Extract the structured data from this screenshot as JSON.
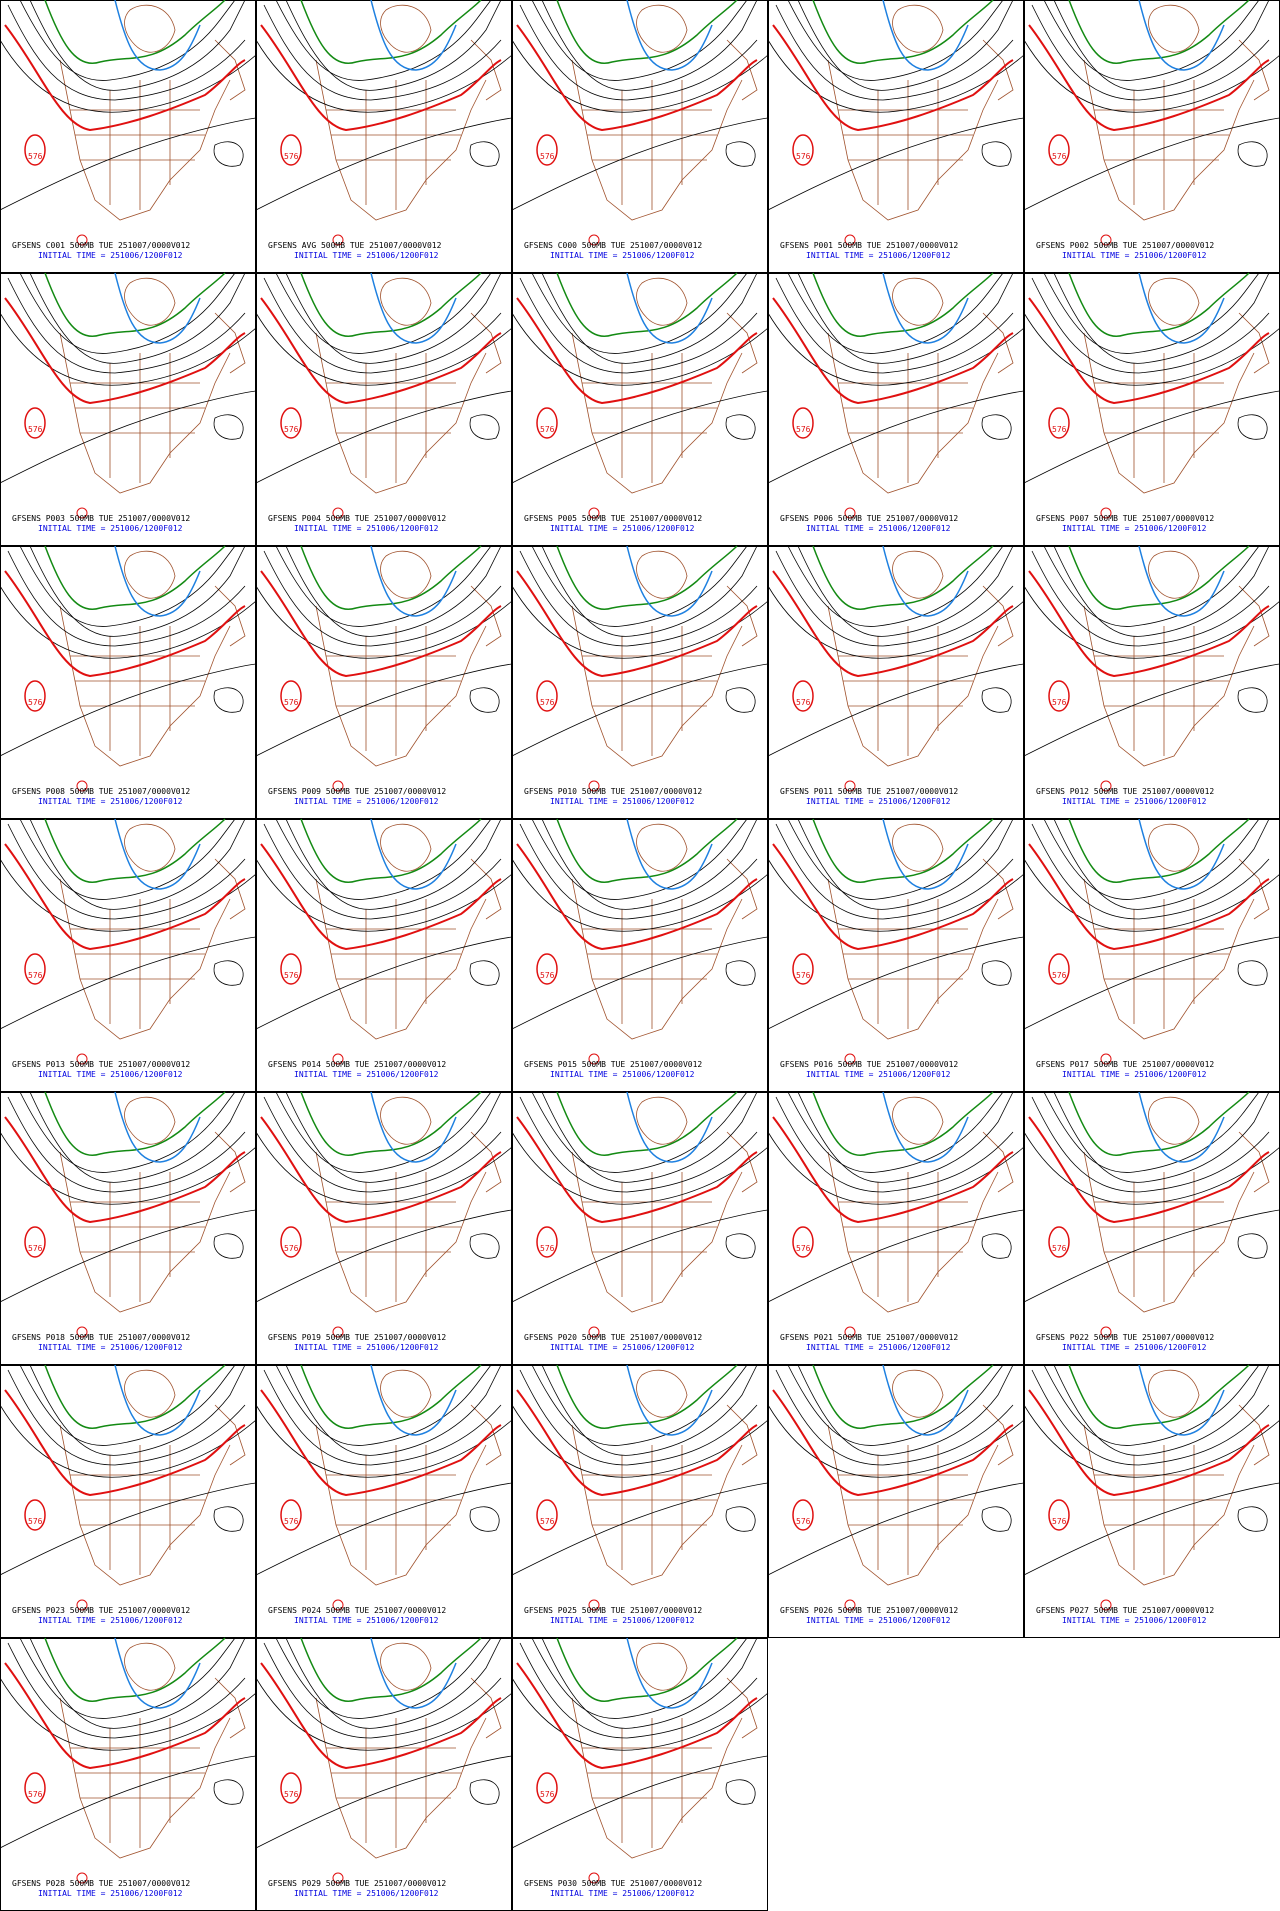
{
  "contour_label": "576",
  "panels": [
    {
      "title": "GFSENS C001 500MB TUE 251007/0000V012",
      "initial_time": "INITIAL TIME = 251006/1200F012"
    },
    {
      "title": "GFSENS AVG 500MB TUE 251007/0000V012",
      "initial_time": "INITIAL TIME = 251006/1200F012"
    },
    {
      "title": "GFSENS C000 500MB TUE 251007/0000V012",
      "initial_time": "INITIAL TIME = 251006/1200F012"
    },
    {
      "title": "GFSENS P001 500MB TUE 251007/0000V012",
      "initial_time": "INITIAL TIME = 251006/1200F012"
    },
    {
      "title": "GFSENS P002 500MB TUE 251007/0000V012",
      "initial_time": "INITIAL TIME = 251006/1200F012"
    },
    {
      "title": "GFSENS P003 500MB TUE 251007/0000V012",
      "initial_time": "INITIAL TIME = 251006/1200F012"
    },
    {
      "title": "GFSENS P004 500MB TUE 251007/0000V012",
      "initial_time": "INITIAL TIME = 251006/1200F012"
    },
    {
      "title": "GFSENS P005 500MB TUE 251007/0000V012",
      "initial_time": "INITIAL TIME = 251006/1200F012"
    },
    {
      "title": "GFSENS P006 500MB TUE 251007/0000V012",
      "initial_time": "INITIAL TIME = 251006/1200F012"
    },
    {
      "title": "GFSENS P007 500MB TUE 251007/0000V012",
      "initial_time": "INITIAL TIME = 251006/1200F012"
    },
    {
      "title": "GFSENS P008 500MB TUE 251007/0000V012",
      "initial_time": "INITIAL TIME = 251006/1200F012"
    },
    {
      "title": "GFSENS P009 500MB TUE 251007/0000V012",
      "initial_time": "INITIAL TIME = 251006/1200F012"
    },
    {
      "title": "GFSENS P010 500MB TUE 251007/0000V012",
      "initial_time": "INITIAL TIME = 251006/1200F012"
    },
    {
      "title": "GFSENS P011 500MB TUE 251007/0000V012",
      "initial_time": "INITIAL TIME = 251006/1200F012"
    },
    {
      "title": "GFSENS P012 500MB TUE 251007/0000V012",
      "initial_time": "INITIAL TIME = 251006/1200F012"
    },
    {
      "title": "GFSENS P013 500MB TUE 251007/0000V012",
      "initial_time": "INITIAL TIME = 251006/1200F012"
    },
    {
      "title": "GFSENS P014 500MB TUE 251007/0000V012",
      "initial_time": "INITIAL TIME = 251006/1200F012"
    },
    {
      "title": "GFSENS P015 500MB TUE 251007/0000V012",
      "initial_time": "INITIAL TIME = 251006/1200F012"
    },
    {
      "title": "GFSENS P016 500MB TUE 251007/0000V012",
      "initial_time": "INITIAL TIME = 251006/1200F012"
    },
    {
      "title": "GFSENS P017 500MB TUE 251007/0000V012",
      "initial_time": "INITIAL TIME = 251006/1200F012"
    },
    {
      "title": "GFSENS P018 500MB TUE 251007/0000V012",
      "initial_time": "INITIAL TIME = 251006/1200F012"
    },
    {
      "title": "GFSENS P019 500MB TUE 251007/0000V012",
      "initial_time": "INITIAL TIME = 251006/1200F012"
    },
    {
      "title": "GFSENS P020 500MB TUE 251007/0000V012",
      "initial_time": "INITIAL TIME = 251006/1200F012"
    },
    {
      "title": "GFSENS P021 500MB TUE 251007/0000V012",
      "initial_time": "INITIAL TIME = 251006/1200F012"
    },
    {
      "title": "GFSENS P022 500MB TUE 251007/0000V012",
      "initial_time": "INITIAL TIME = 251006/1200F012"
    },
    {
      "title": "GFSENS P023 500MB TUE 251007/0000V012",
      "initial_time": "INITIAL TIME = 251006/1200F012"
    },
    {
      "title": "GFSENS P024 500MB TUE 251007/0000V012",
      "initial_time": "INITIAL TIME = 251006/1200F012"
    },
    {
      "title": "GFSENS P025 500MB TUE 251007/0000V012",
      "initial_time": "INITIAL TIME = 251006/1200F012"
    },
    {
      "title": "GFSENS P026 500MB TUE 251007/0000V012",
      "initial_time": "INITIAL TIME = 251006/1200F012"
    },
    {
      "title": "GFSENS P027 500MB TUE 251007/0000V012",
      "initial_time": "INITIAL TIME = 251006/1200F012"
    },
    {
      "title": "GFSENS P028 500MB TUE 251007/0000V012",
      "initial_time": "INITIAL TIME = 251006/1200F012"
    },
    {
      "title": "GFSENS P029 500MB TUE 251007/0000V012",
      "initial_time": "INITIAL TIME = 251006/1200F012"
    },
    {
      "title": "GFSENS P030 500MB TUE 251007/0000V012",
      "initial_time": "INITIAL TIME = 251006/1200F012"
    }
  ]
}
